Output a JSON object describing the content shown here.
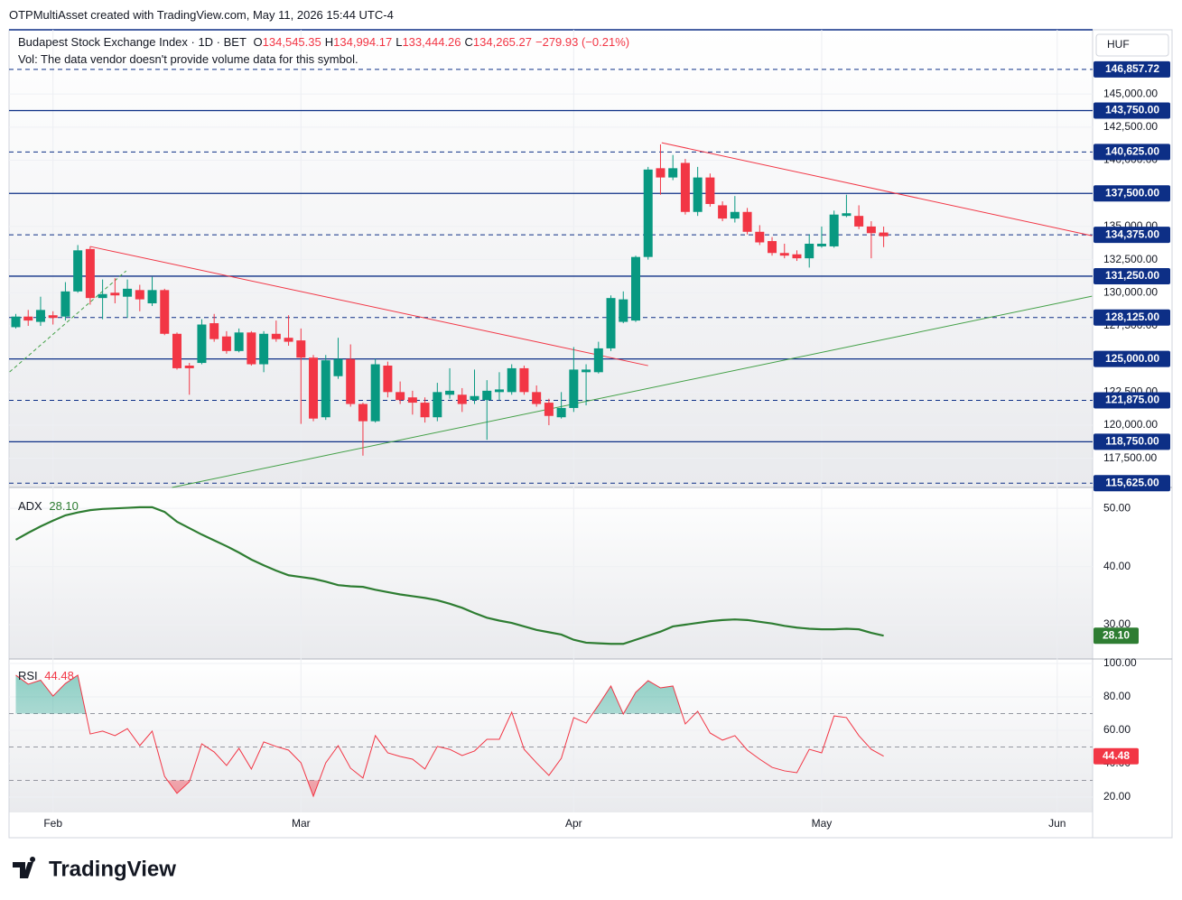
{
  "header": {
    "credit": "OTPMultiAsset created with TradingView.com, May 11, 2026 15:44 UTC-4"
  },
  "chart_data": [
    {
      "type": "candlestick",
      "title": "Budapest Stock Exchange Index · 1D · BET",
      "legend": [
        {
          "label": "O",
          "value": "134,545.35"
        },
        {
          "label": "H",
          "value": "134,994.17"
        },
        {
          "label": "L",
          "value": "133,444.26"
        },
        {
          "label": "C",
          "value": "134,265.27"
        }
      ],
      "change": "−279.93 (−0.21%)",
      "note": "Vol: The data vendor doesn't provide volume data for this symbol.",
      "currency": "HUF",
      "categories": [
        null,
        null,
        null,
        "Feb",
        null,
        null,
        null,
        null,
        null,
        null,
        null,
        null,
        null,
        null,
        null,
        null,
        null,
        null,
        null,
        null,
        null,
        null,
        null,
        "Mar",
        null,
        null,
        null,
        null,
        null,
        null,
        null,
        null,
        null,
        null,
        null,
        null,
        null,
        null,
        null,
        null,
        null,
        null,
        null,
        null,
        null,
        "Apr",
        null,
        null,
        null,
        null,
        null,
        null,
        null,
        null,
        null,
        null,
        null,
        null,
        null,
        null,
        null,
        null,
        null,
        null,
        null,
        "May",
        null,
        null,
        null,
        null,
        null,
        null,
        null,
        null,
        null,
        null,
        null,
        null,
        null,
        null,
        null,
        null,
        null,
        null,
        "Jun",
        null,
        null
      ],
      "open": [
        127400,
        128200,
        127800,
        128300,
        128200,
        130100,
        133300,
        129600,
        130000,
        129700,
        130200,
        129200,
        130200,
        126900,
        124500,
        124700,
        127700,
        126700,
        125600,
        127000,
        124600,
        126900,
        126600,
        126400,
        125100,
        120600,
        123700,
        125000,
        121600,
        120300,
        124500,
        122500,
        122100,
        121700,
        120600,
        122300,
        122300,
        121900,
        121900,
        122500,
        122500,
        124300,
        122500,
        121700,
        120600,
        121300,
        124000,
        124000,
        125800,
        127800,
        127900,
        132700,
        139400,
        138700,
        139800,
        136100,
        138700,
        136600,
        135600,
        136100,
        134600,
        133900,
        133000,
        132900,
        132600,
        133500,
        133500,
        135800,
        135800,
        135000,
        134545.35,
        null,
        null,
        null,
        null,
        null,
        null,
        null,
        null,
        null,
        null,
        null,
        null,
        null,
        null,
        null,
        null
      ],
      "high": [
        128400,
        128700,
        129700,
        128600,
        130800,
        133600,
        133500,
        131000,
        131100,
        131000,
        130600,
        131200,
        130300,
        127000,
        124700,
        128000,
        128400,
        127100,
        127300,
        127100,
        127100,
        127900,
        128300,
        127300,
        125300,
        125300,
        126600,
        126100,
        121700,
        125000,
        124800,
        123300,
        122600,
        122100,
        123200,
        124300,
        122800,
        124200,
        123400,
        124000,
        124600,
        124500,
        123000,
        122000,
        122500,
        125900,
        124600,
        126300,
        129800,
        130100,
        132800,
        139500,
        141200,
        140400,
        140100,
        139500,
        139000,
        136900,
        137300,
        136400,
        135100,
        134200,
        133700,
        133200,
        134400,
        135000,
        136200,
        137400,
        136600,
        135400,
        134994.17,
        null,
        null,
        null,
        null,
        null,
        null,
        null,
        null,
        null,
        null,
        null,
        null,
        null,
        null,
        null,
        null
      ],
      "low": [
        127300,
        127500,
        127500,
        127600,
        127900,
        130000,
        129100,
        128000,
        129200,
        128100,
        128600,
        129000,
        126800,
        124200,
        122300,
        124600,
        126300,
        125400,
        125500,
        124500,
        124000,
        126300,
        126000,
        120100,
        120300,
        120400,
        123500,
        121400,
        117700,
        120200,
        122100,
        121600,
        120800,
        120200,
        120300,
        122000,
        121000,
        121600,
        118900,
        121900,
        122300,
        122300,
        121400,
        120000,
        120500,
        121000,
        121500,
        123900,
        125600,
        127700,
        127800,
        132500,
        137400,
        138500,
        135900,
        135800,
        136500,
        135400,
        135300,
        134400,
        133600,
        132800,
        132600,
        132400,
        131900,
        133400,
        133400,
        135700,
        134800,
        132600,
        133444.26,
        null,
        null,
        null,
        null,
        null,
        null,
        null,
        null,
        null,
        null,
        null,
        null,
        null,
        null,
        null,
        null
      ],
      "close": [
        128200,
        127900,
        128700,
        128100,
        130100,
        133200,
        129600,
        129900,
        129800,
        130300,
        129500,
        130200,
        126900,
        124300,
        124300,
        127600,
        126500,
        125600,
        127000,
        124600,
        126900,
        126500,
        126300,
        125100,
        120500,
        124900,
        125000,
        121600,
        120300,
        124600,
        122500,
        121900,
        121700,
        120600,
        122500,
        122600,
        121600,
        122200,
        122600,
        122700,
        124300,
        122500,
        121600,
        120700,
        121300,
        124200,
        124200,
        125800,
        129600,
        129500,
        132700,
        139300,
        138700,
        139400,
        136100,
        138700,
        136700,
        135600,
        136100,
        134600,
        133800,
        133000,
        132800,
        132600,
        133700,
        133700,
        135900,
        136000,
        135000,
        134500,
        134265.27,
        null,
        null,
        null,
        null,
        null,
        null,
        null,
        null,
        null,
        null,
        null,
        null,
        null,
        null,
        null,
        null
      ],
      "up_color": "#089981",
      "down_color": "#f23645",
      "ylim": [
        115300,
        149850
      ],
      "yticks": [
        {
          "value": 145000,
          "label": "145,000.00"
        },
        {
          "value": 142500,
          "label": "142,500.00"
        },
        {
          "value": 140000,
          "label": "140,000.00"
        },
        {
          "value": 135000,
          "label": "135,000.00"
        },
        {
          "value": 132500,
          "label": "132,500.00"
        },
        {
          "value": 130000,
          "label": "130,000.00"
        },
        {
          "value": 127500,
          "label": "127,500.00"
        },
        {
          "value": 122500,
          "label": "122,500.00"
        },
        {
          "value": 120000,
          "label": "120,000.00"
        },
        {
          "value": 117500,
          "label": "117,500.00"
        }
      ],
      "levels": [
        {
          "value": 146857.72,
          "label": "146,857.72",
          "style": "dashed"
        },
        {
          "value": 143750,
          "label": "143,750.00",
          "style": "solid"
        },
        {
          "value": 140625,
          "label": "140,625.00",
          "style": "dashed"
        },
        {
          "value": 137500,
          "label": "137,500.00",
          "style": "solid"
        },
        {
          "value": 134375,
          "label": "134,375.00",
          "style": "dashed"
        },
        {
          "value": 131250,
          "label": "131,250.00",
          "style": "solid"
        },
        {
          "value": 128125,
          "label": "128,125.00",
          "style": "dashed"
        },
        {
          "value": 125000,
          "label": "125,000.00",
          "style": "solid"
        },
        {
          "value": 121875,
          "label": "121,875.00",
          "style": "dashed"
        },
        {
          "value": 118750,
          "label": "118,750.00",
          "style": "solid"
        },
        {
          "value": 115625,
          "label": "115,625.00",
          "style": "dashed"
        }
      ],
      "level_color": "#0d2f86",
      "trendlines": [
        {
          "x": [
            6.0,
            51.0
          ],
          "y": [
            133490,
            124496
          ],
          "color": "#f23645",
          "style": "solid"
        },
        {
          "x": [
            52.1,
            86.8
          ],
          "y": [
            141320,
            134305
          ],
          "color": "#f23645",
          "style": "solid"
        },
        {
          "x": [
            12.6,
            86.8
          ],
          "y": [
            115300,
            129741
          ],
          "color": "#43a047",
          "style": "solid"
        },
        {
          "x": [
            -0.5,
            8.9
          ],
          "y": [
            124019,
            131650
          ],
          "color": "#43a047",
          "style": "dashed"
        }
      ],
      "grid": true
    },
    {
      "type": "line",
      "title": "ADX",
      "current": {
        "value": 28.1,
        "label": "28.10"
      },
      "color": "#2e7d32",
      "values": [
        44.6,
        45.8,
        46.9,
        47.9,
        48.8,
        49.3,
        49.7,
        49.9,
        50.0,
        50.1,
        50.2,
        50.2,
        49.4,
        47.7,
        46.6,
        45.5,
        44.5,
        43.5,
        42.4,
        41.2,
        40.2,
        39.3,
        38.5,
        38.2,
        37.9,
        37.4,
        36.8,
        36.6,
        36.5,
        36.0,
        35.6,
        35.2,
        34.9,
        34.6,
        34.2,
        33.6,
        32.9,
        32.0,
        31.2,
        30.7,
        30.3,
        29.7,
        29.1,
        28.7,
        28.3,
        27.4,
        26.9,
        26.8,
        26.7,
        26.7,
        27.4,
        28.1,
        28.8,
        29.7,
        30.0,
        30.3,
        30.6,
        30.8,
        30.9,
        30.8,
        30.5,
        30.2,
        29.8,
        29.5,
        29.3,
        29.2,
        29.2,
        29.3,
        29.2,
        28.6,
        28.1,
        null,
        null,
        null,
        null,
        null,
        null,
        null,
        null,
        null,
        null,
        null,
        null,
        null,
        null,
        null,
        null
      ],
      "ylim": [
        24.1,
        53.6
      ],
      "yticks": [
        {
          "value": 50,
          "label": "50.00"
        },
        {
          "value": 40,
          "label": "40.00"
        },
        {
          "value": 30,
          "label": "30.00"
        }
      ]
    },
    {
      "type": "line",
      "title": "RSI",
      "current": 44.48,
      "color": "#f23645",
      "values": [
        93,
        87.6,
        90,
        80.5,
        88,
        93,
        57.8,
        59.5,
        56.8,
        61,
        50.8,
        59.5,
        32.4,
        22.2,
        29.2,
        51.9,
        47,
        38.9,
        49.2,
        36.8,
        53,
        50.3,
        48.1,
        40.5,
        20.5,
        40.5,
        50.8,
        37.3,
        31.4,
        56.8,
        46.5,
        44.3,
        42.7,
        36.8,
        50.3,
        48.6,
        44.9,
        47.6,
        54.6,
        54.6,
        70.8,
        48.6,
        40.5,
        33,
        43.2,
        67.6,
        64.3,
        75.1,
        86.5,
        69.7,
        82.7,
        89.7,
        85.4,
        86.5,
        63.8,
        71.4,
        58.4,
        54.1,
        56.8,
        48.1,
        42.7,
        37.8,
        35.7,
        34.6,
        48.6,
        46.5,
        68.6,
        67.6,
        56.8,
        48.6,
        44.48,
        null,
        null,
        null,
        null,
        null,
        null,
        null,
        null,
        null,
        null,
        null,
        null,
        null,
        null,
        null,
        null
      ],
      "ylim": [
        10.8,
        102.7
      ],
      "yticks": [
        {
          "value": 100,
          "label": "100.00"
        },
        {
          "value": 80,
          "label": "80.00"
        },
        {
          "value": 60,
          "label": "60.00"
        },
        {
          "value": 40,
          "label": "40.00"
        },
        {
          "value": 20,
          "label": "20.00"
        }
      ],
      "levels": [
        70,
        50,
        30
      ],
      "overbought_fill": "#089981",
      "oversold_fill": "#f23645"
    }
  ],
  "footer": {
    "brand": "TradingView"
  }
}
